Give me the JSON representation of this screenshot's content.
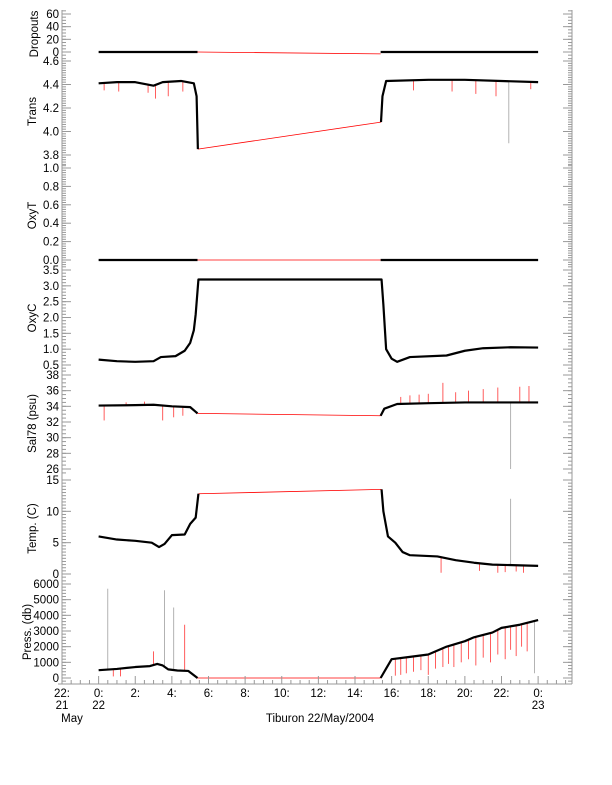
{
  "chart_data": {
    "type": "line",
    "title": "Tiburon 22/May/2004",
    "xlabel": "Tiburon 22/May/2004",
    "x_units": "hours since 22/May/2004 00:00",
    "xlim": [
      -2,
      25.85
    ],
    "x_ticks": [
      {
        "x": -2,
        "l1": "22:",
        "l2": "21",
        "l3": "May"
      },
      {
        "x": 0,
        "l1": "0:",
        "l2": "22",
        "l3": ""
      },
      {
        "x": 2,
        "l1": "2:",
        "l2": "",
        "l3": ""
      },
      {
        "x": 4,
        "l1": "4:",
        "l2": "",
        "l3": ""
      },
      {
        "x": 6,
        "l1": "6:",
        "l2": "",
        "l3": ""
      },
      {
        "x": 8,
        "l1": "8:",
        "l2": "",
        "l3": ""
      },
      {
        "x": 10,
        "l1": "10:",
        "l2": "",
        "l3": ""
      },
      {
        "x": 12,
        "l1": "12:",
        "l2": "",
        "l3": ""
      },
      {
        "x": 14,
        "l1": "14:",
        "l2": "",
        "l3": ""
      },
      {
        "x": 16,
        "l1": "16:",
        "l2": "",
        "l3": ""
      },
      {
        "x": 18,
        "l1": "18:",
        "l2": "",
        "l3": ""
      },
      {
        "x": 20,
        "l1": "20:",
        "l2": "",
        "l3": ""
      },
      {
        "x": 22,
        "l1": "22:",
        "l2": "",
        "l3": ""
      },
      {
        "x": 24,
        "l1": "0:",
        "l2": "23",
        "l3": ""
      }
    ],
    "colors": {
      "series": "#000000",
      "raw": "#ff0000",
      "axis": "#999999"
    },
    "panels": [
      {
        "ylabel": "Dropouts",
        "ylim": [
          0,
          60
        ],
        "ticks": [
          "0",
          "20",
          "40",
          "60"
        ],
        "tick_values": [
          0,
          20,
          40,
          60
        ],
        "minor": 5,
        "segments": [
          [
            [
              0,
              0
            ],
            [
              5.4,
              0
            ]
          ],
          [
            [
              15.4,
              0
            ],
            [
              24,
              0
            ]
          ]
        ],
        "gap_line": [
          [
            5.4,
            0
          ],
          [
            15.4,
            -3
          ]
        ],
        "spikes": []
      },
      {
        "ylabel": "Trans",
        "ylim": [
          3.8,
          4.6
        ],
        "ticks": [
          "3.8",
          "4.0",
          "4.2",
          "4.4",
          "4.6"
        ],
        "tick_values": [
          3.8,
          4.0,
          4.2,
          4.4,
          4.6
        ],
        "minor": 0.02,
        "segments": [
          [
            [
              0,
              4.41
            ],
            [
              1,
              4.42
            ],
            [
              2,
              4.42
            ],
            [
              3,
              4.39
            ],
            [
              3.5,
              4.42
            ],
            [
              4.5,
              4.43
            ],
            [
              5.2,
              4.41
            ],
            [
              5.35,
              4.3
            ],
            [
              5.42,
              3.85
            ]
          ],
          [
            [
              15.42,
              4.08
            ],
            [
              15.5,
              4.3
            ],
            [
              15.7,
              4.43
            ],
            [
              18,
              4.44
            ],
            [
              20,
              4.44
            ],
            [
              22,
              4.43
            ],
            [
              24,
              4.42
            ]
          ]
        ],
        "gap_line": [
          [
            5.42,
            3.85
          ],
          [
            15.42,
            4.08
          ]
        ],
        "spikes": [
          [
            0.3,
            4.35
          ],
          [
            1.1,
            4.34
          ],
          [
            2.7,
            4.33
          ],
          [
            3.1,
            4.28
          ],
          [
            3.8,
            4.3
          ],
          [
            4.6,
            4.34
          ],
          [
            17.2,
            4.35
          ],
          [
            19.3,
            4.34
          ],
          [
            20.6,
            4.32
          ],
          [
            21.7,
            4.3
          ],
          [
            22.4,
            3.9
          ],
          [
            23.6,
            4.36
          ]
        ]
      },
      {
        "ylabel": "OxyT",
        "ylim": [
          0,
          1
        ],
        "ticks": [
          "0.0",
          "0.2",
          "0.4",
          "0.6",
          "0.8",
          "1.0"
        ],
        "tick_values": [
          0,
          0.2,
          0.4,
          0.6,
          0.8,
          1.0
        ],
        "minor": 0.025,
        "segments": [
          [
            [
              0,
              0
            ],
            [
              5.4,
              0
            ]
          ],
          [
            [
              15.4,
              0
            ],
            [
              24,
              0
            ]
          ]
        ],
        "gap_line": [
          [
            5.4,
            0
          ],
          [
            15.4,
            0
          ]
        ],
        "spikes": []
      },
      {
        "ylabel": "OxyC",
        "ylim": [
          0.5,
          3.5
        ],
        "ticks": [
          "0.5",
          "1.0",
          "1.5",
          "2.0",
          "2.5",
          "3.0",
          "3.5"
        ],
        "tick_values": [
          0.5,
          1.0,
          1.5,
          2.0,
          2.5,
          3.0,
          3.5
        ],
        "minor": 0.1,
        "segments": [
          [
            [
              0,
              0.67
            ],
            [
              1,
              0.62
            ],
            [
              2,
              0.6
            ],
            [
              3,
              0.62
            ],
            [
              3.4,
              0.75
            ],
            [
              4.2,
              0.78
            ],
            [
              4.7,
              0.95
            ],
            [
              5.0,
              1.2
            ],
            [
              5.2,
              1.6
            ],
            [
              5.3,
              2.1
            ],
            [
              5.45,
              3.2
            ],
            [
              15.45,
              3.2
            ],
            [
              15.55,
              2.4
            ],
            [
              15.7,
              1.0
            ],
            [
              16.0,
              0.7
            ],
            [
              16.3,
              0.6
            ],
            [
              17,
              0.75
            ],
            [
              19,
              0.8
            ],
            [
              20,
              0.95
            ],
            [
              21,
              1.03
            ],
            [
              22.5,
              1.06
            ],
            [
              24,
              1.05
            ]
          ]
        ],
        "gap_line": [
          [
            5.45,
            3.2
          ],
          [
            15.45,
            3.2
          ]
        ],
        "spikes": []
      },
      {
        "ylabel": "Sal78 (psu)",
        "ylim": [
          26,
          38
        ],
        "ticks": [
          "26",
          "28",
          "30",
          "32",
          "34",
          "36",
          "38"
        ],
        "tick_values": [
          26,
          28,
          30,
          32,
          34,
          36,
          38
        ],
        "minor": 0.5,
        "segments": [
          [
            [
              0,
              34.1
            ],
            [
              2,
              34.15
            ],
            [
              3,
              34.2
            ],
            [
              4,
              34.0
            ],
            [
              5,
              33.9
            ],
            [
              5.3,
              33.3
            ],
            [
              5.4,
              33.1
            ]
          ],
          [
            [
              15.4,
              32.8
            ],
            [
              15.6,
              33.7
            ],
            [
              16.3,
              34.3
            ],
            [
              18,
              34.4
            ],
            [
              20,
              34.5
            ],
            [
              24,
              34.5
            ]
          ]
        ],
        "gap_line": [
          [
            5.4,
            33.1
          ],
          [
            15.4,
            32.8
          ]
        ],
        "spikes": [
          [
            0.3,
            32.2
          ],
          [
            1.5,
            34.5
          ],
          [
            2.5,
            34.6
          ],
          [
            3.5,
            32.2
          ],
          [
            4.1,
            32.6
          ],
          [
            4.6,
            32.8
          ],
          [
            16.5,
            35.2
          ],
          [
            17,
            35.4
          ],
          [
            17.5,
            35.5
          ],
          [
            18,
            35.6
          ],
          [
            18.8,
            37.0
          ],
          [
            19.5,
            35.8
          ],
          [
            20.2,
            36.0
          ],
          [
            21,
            36.2
          ],
          [
            21.8,
            36.4
          ],
          [
            22.5,
            26.0
          ],
          [
            23,
            36.5
          ],
          [
            23.5,
            36.6
          ]
        ]
      },
      {
        "ylabel": "Temp. (C)",
        "ylim": [
          0,
          15
        ],
        "ticks": [
          "0",
          "5",
          "10",
          "15"
        ],
        "tick_values": [
          0,
          5,
          10,
          15
        ],
        "minor": 0.5,
        "segments": [
          [
            [
              0,
              6.0
            ],
            [
              1,
              5.5
            ],
            [
              2,
              5.3
            ],
            [
              2.9,
              5.0
            ],
            [
              3.3,
              4.3
            ],
            [
              3.6,
              4.8
            ],
            [
              4.0,
              6.2
            ],
            [
              4.7,
              6.3
            ],
            [
              5.0,
              8.0
            ],
            [
              5.3,
              9.0
            ],
            [
              5.45,
              12.8
            ]
          ],
          [
            [
              15.45,
              13.5
            ],
            [
              15.55,
              10.0
            ],
            [
              15.8,
              6.0
            ],
            [
              16.2,
              5.0
            ],
            [
              16.6,
              3.5
            ],
            [
              17,
              3.0
            ],
            [
              18.5,
              2.8
            ],
            [
              19.5,
              2.2
            ],
            [
              20.5,
              1.8
            ],
            [
              21.5,
              1.5
            ],
            [
              24,
              1.3
            ]
          ]
        ],
        "gap_line": [
          [
            5.45,
            12.8
          ],
          [
            15.45,
            13.5
          ]
        ],
        "spikes": [
          [
            18.7,
            0.2
          ],
          [
            20.8,
            0.5
          ],
          [
            21.8,
            0.2
          ],
          [
            22.2,
            0.3
          ],
          [
            22.5,
            12.0
          ],
          [
            22.8,
            0.4
          ],
          [
            23.2,
            0.2
          ]
        ]
      },
      {
        "ylabel": "Press. (db)",
        "ylim": [
          0,
          6000
        ],
        "ticks": [
          "0",
          "1000",
          "2000",
          "3000",
          "4000",
          "5000",
          "6000"
        ],
        "tick_values": [
          0,
          1000,
          2000,
          3000,
          4000,
          5000,
          6000
        ],
        "minor": 200,
        "segments": [
          [
            [
              0,
              500
            ],
            [
              1,
              580
            ],
            [
              2,
              700
            ],
            [
              2.8,
              760
            ],
            [
              3.2,
              900
            ],
            [
              3.5,
              800
            ],
            [
              3.8,
              550
            ],
            [
              4.3,
              480
            ],
            [
              4.9,
              450
            ],
            [
              5.4,
              0
            ]
          ],
          [
            [
              15.4,
              0
            ],
            [
              15.7,
              600
            ],
            [
              16,
              1200
            ],
            [
              17,
              1350
            ],
            [
              18,
              1500
            ],
            [
              19,
              2000
            ],
            [
              20,
              2350
            ],
            [
              20.5,
              2600
            ],
            [
              21.5,
              2900
            ],
            [
              22,
              3200
            ],
            [
              23,
              3400
            ],
            [
              24,
              3700
            ]
          ]
        ],
        "gap_line": [
          [
            5.4,
            0
          ],
          [
            15.4,
            0
          ]
        ],
        "spikes": [
          [
            0.5,
            5700
          ],
          [
            0.8,
            100
          ],
          [
            1.2,
            100
          ],
          [
            3.0,
            1700
          ],
          [
            3.6,
            5600
          ],
          [
            4.1,
            4500
          ],
          [
            4.7,
            3400
          ],
          [
            16.2,
            150
          ],
          [
            16.5,
            200
          ],
          [
            16.8,
            300
          ],
          [
            17.2,
            400
          ],
          [
            17.6,
            500
          ],
          [
            18.0,
            200
          ],
          [
            18.4,
            600
          ],
          [
            18.8,
            700
          ],
          [
            19.1,
            900
          ],
          [
            19.4,
            700
          ],
          [
            19.8,
            1000
          ],
          [
            20.2,
            1200
          ],
          [
            20.6,
            800
          ],
          [
            21.0,
            1300
          ],
          [
            21.4,
            1000
          ],
          [
            21.8,
            1500
          ],
          [
            22.2,
            1200
          ],
          [
            22.5,
            1800
          ],
          [
            22.8,
            1400
          ],
          [
            23.1,
            2000
          ],
          [
            23.4,
            1700
          ],
          [
            23.8,
            300
          ]
        ]
      }
    ]
  }
}
